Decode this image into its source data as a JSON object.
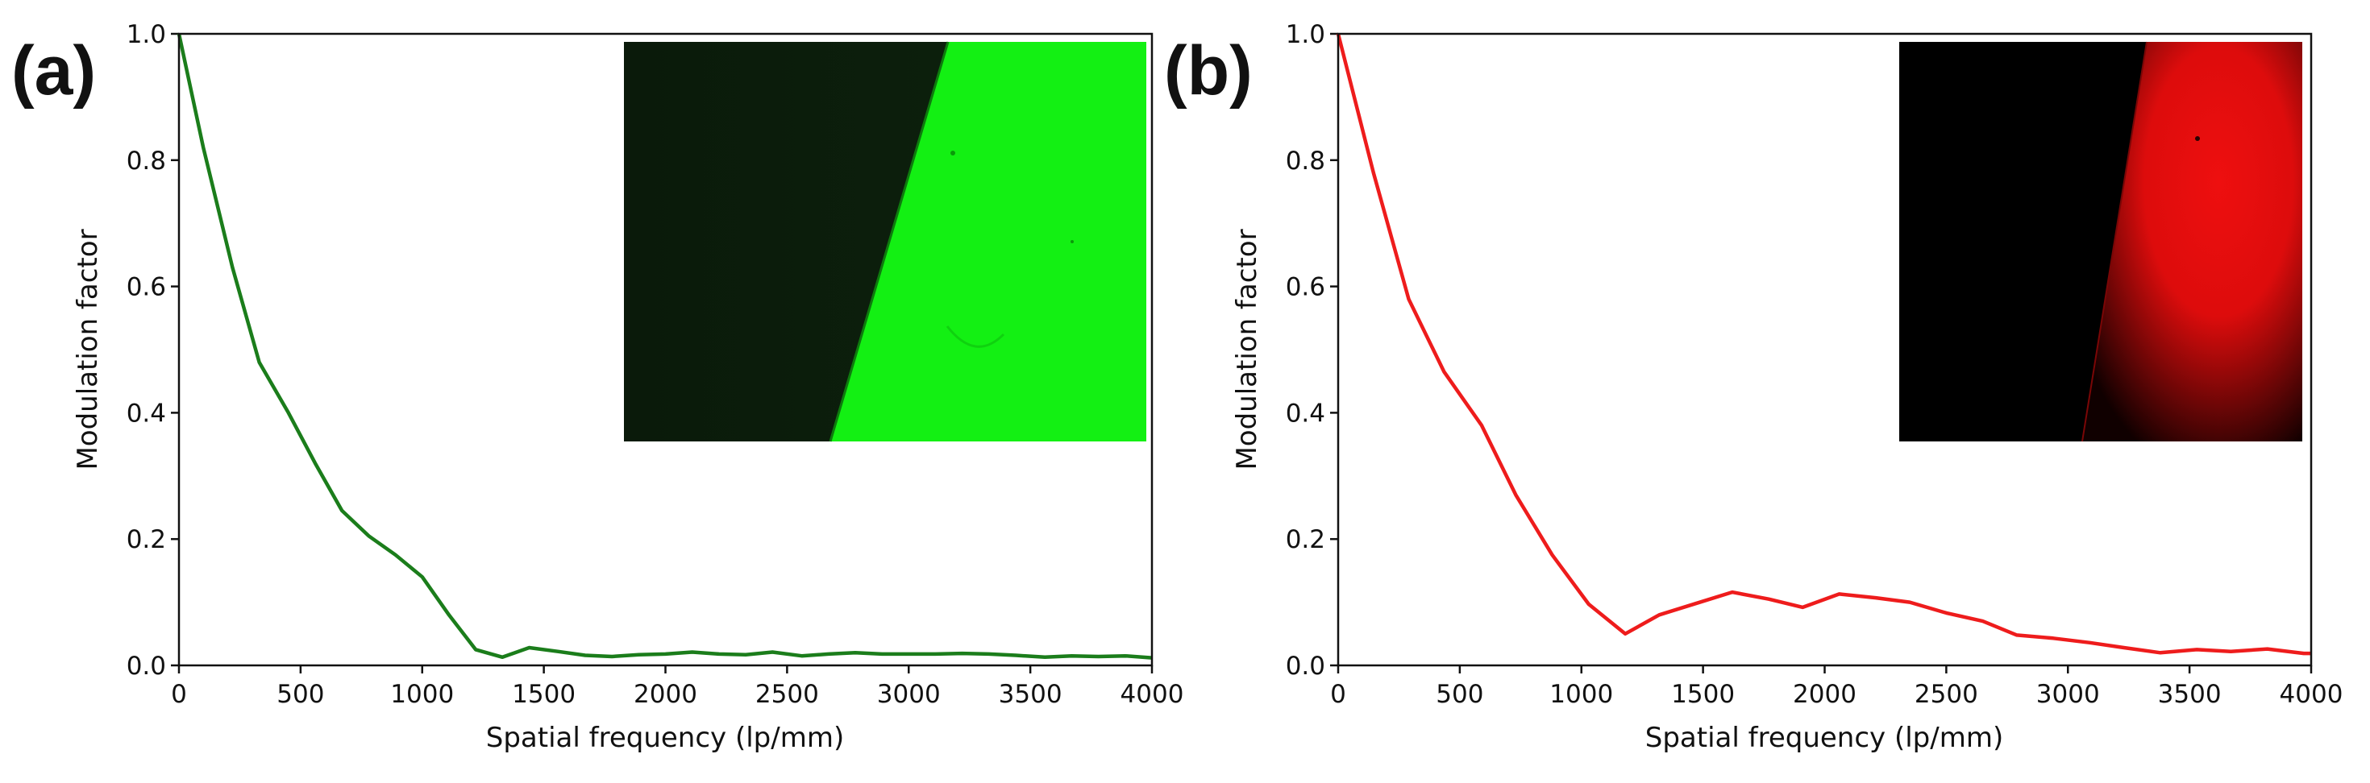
{
  "chart_data": [
    {
      "type": "line",
      "panel_label": "(a)",
      "xlabel": "Spatial frequency (lp/mm)",
      "ylabel": "Modulation factor",
      "xlim": [
        0,
        4000
      ],
      "ylim": [
        0,
        1.0
      ],
      "xticks": [
        0,
        500,
        1000,
        1500,
        2000,
        2500,
        3000,
        3500,
        4000
      ],
      "yticks": [
        0.0,
        0.2,
        0.4,
        0.6,
        0.8,
        1.0
      ],
      "ytick_labels": [
        "0.0",
        "0.2",
        "0.4",
        "0.6",
        "0.8",
        "1.0"
      ],
      "line_color": "#1b7d1b",
      "inset": {
        "kind": "slanted-edge image",
        "dark_color": "#000000",
        "bright_color": "#13f013"
      },
      "series": [
        {
          "name": "green",
          "x": [
            0,
            100,
            220,
            330,
            450,
            560,
            670,
            780,
            890,
            1000,
            1110,
            1220,
            1330,
            1440,
            1560,
            1670,
            1780,
            1890,
            2000,
            2110,
            2220,
            2330,
            2440,
            2560,
            2670,
            2780,
            2890,
            3000,
            3110,
            3220,
            3330,
            3440,
            3560,
            3670,
            3780,
            3890,
            4000
          ],
          "y": [
            1.0,
            0.82,
            0.63,
            0.48,
            0.4,
            0.32,
            0.245,
            0.205,
            0.175,
            0.14,
            0.08,
            0.025,
            0.013,
            0.028,
            0.022,
            0.016,
            0.014,
            0.017,
            0.018,
            0.021,
            0.018,
            0.017,
            0.021,
            0.015,
            0.018,
            0.02,
            0.018,
            0.018,
            0.018,
            0.019,
            0.018,
            0.016,
            0.013,
            0.015,
            0.014,
            0.015,
            0.012
          ]
        }
      ]
    },
    {
      "type": "line",
      "panel_label": "(b)",
      "xlabel": "Spatial frequency (lp/mm)",
      "ylabel": "Modulation factor",
      "xlim": [
        0,
        4000
      ],
      "ylim": [
        0,
        1.0
      ],
      "xticks": [
        0,
        500,
        1000,
        1500,
        2000,
        2500,
        3000,
        3500,
        4000
      ],
      "yticks": [
        0.0,
        0.2,
        0.4,
        0.6,
        0.8,
        1.0
      ],
      "ytick_labels": [
        "0.0",
        "0.2",
        "0.4",
        "0.6",
        "0.8",
        "1.0"
      ],
      "line_color": "#ee1c1c",
      "inset": {
        "kind": "slanted-edge image",
        "dark_color": "#000000",
        "bright_color": "#ee1111"
      },
      "series": [
        {
          "name": "red",
          "x": [
            0,
            145,
            290,
            435,
            590,
            730,
            880,
            1030,
            1180,
            1320,
            1470,
            1620,
            1770,
            1910,
            2060,
            2210,
            2350,
            2500,
            2650,
            2790,
            2940,
            3090,
            3230,
            3380,
            3530,
            3670,
            3820,
            3970,
            4000
          ],
          "y": [
            1.0,
            0.78,
            0.58,
            0.465,
            0.38,
            0.27,
            0.175,
            0.097,
            0.05,
            0.08,
            0.098,
            0.116,
            0.105,
            0.092,
            0.113,
            0.107,
            0.1,
            0.083,
            0.07,
            0.048,
            0.043,
            0.036,
            0.028,
            0.02,
            0.025,
            0.022,
            0.026,
            0.019,
            0.019
          ]
        }
      ]
    }
  ]
}
